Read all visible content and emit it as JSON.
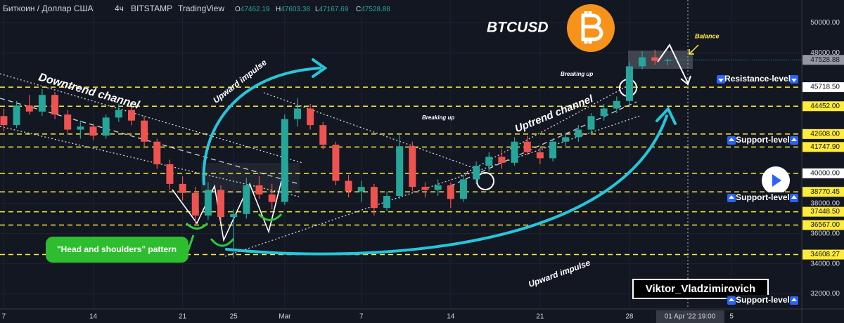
{
  "chart_data": {
    "type": "candlestick",
    "header": {
      "symbol": "Биткоин / Доллар США",
      "timeframe": "4ч",
      "exchange": "BITSTAMP",
      "source": "TradingView",
      "ohlc": [
        {
          "label": "O",
          "value": 47462.19
        },
        {
          "label": "H",
          "value": 47603.38
        },
        {
          "label": "L",
          "value": 47167.69
        },
        {
          "label": "C",
          "value": 47528.88
        }
      ]
    },
    "title": "BTCUSD",
    "x": [
      0,
      1,
      2,
      3,
      4,
      5,
      6,
      7,
      8,
      9,
      10,
      11,
      12,
      13,
      14,
      15,
      16,
      17,
      18,
      19,
      20,
      21,
      22,
      23,
      24,
      25,
      26,
      27,
      28,
      29,
      30,
      31,
      32,
      33,
      34,
      35,
      36,
      37,
      38,
      39,
      40,
      41,
      42,
      43,
      44,
      45,
      46,
      47,
      48,
      49,
      50,
      51,
      52
    ],
    "ohlc": [
      [
        43800,
        44300,
        42800,
        43200
      ],
      [
        43200,
        44800,
        43000,
        44500
      ],
      [
        44500,
        45200,
        43900,
        44100
      ],
      [
        44100,
        45600,
        43800,
        45200
      ],
      [
        45200,
        45400,
        43600,
        43900
      ],
      [
        43900,
        44200,
        42700,
        42900
      ],
      [
        42900,
        43500,
        42300,
        43100
      ],
      [
        43100,
        43300,
        42200,
        42500
      ],
      [
        42500,
        43900,
        42300,
        43700
      ],
      [
        43700,
        44600,
        43400,
        44200
      ],
      [
        44200,
        44500,
        43200,
        43500
      ],
      [
        43500,
        43800,
        41800,
        42100
      ],
      [
        42100,
        42300,
        40300,
        40600
      ],
      [
        40600,
        40900,
        38900,
        39300
      ],
      [
        39300,
        39800,
        38200,
        38700
      ],
      [
        38700,
        39100,
        36600,
        37200
      ],
      [
        37200,
        39400,
        36900,
        38900
      ],
      [
        38900,
        39200,
        36800,
        37100
      ],
      [
        37100,
        37600,
        34400,
        37300
      ],
      [
        37300,
        39700,
        37000,
        39200
      ],
      [
        39200,
        39800,
        38300,
        38600
      ],
      [
        38600,
        39300,
        37600,
        38100
      ],
      [
        38100,
        43900,
        37900,
        43600
      ],
      [
        43600,
        45000,
        43100,
        44300
      ],
      [
        44300,
        44600,
        42900,
        43200
      ],
      [
        43200,
        43400,
        41600,
        41900
      ],
      [
        41900,
        42100,
        39200,
        39500
      ],
      [
        39500,
        39900,
        38400,
        38800
      ],
      [
        38800,
        39500,
        38100,
        39100
      ],
      [
        39100,
        39300,
        37200,
        37700
      ],
      [
        37700,
        38800,
        37500,
        38500
      ],
      [
        38500,
        42600,
        38300,
        41800
      ],
      [
        41800,
        42100,
        38800,
        39100
      ],
      [
        39100,
        39400,
        38400,
        38900
      ],
      [
        38900,
        39600,
        38500,
        39200
      ],
      [
        39200,
        39400,
        37700,
        38300
      ],
      [
        38300,
        39900,
        38100,
        39600
      ],
      [
        39600,
        40800,
        39300,
        40500
      ],
      [
        40500,
        41400,
        40100,
        41100
      ],
      [
        41100,
        41600,
        40300,
        40700
      ],
      [
        40700,
        42400,
        40500,
        42100
      ],
      [
        42100,
        42500,
        41200,
        41400
      ],
      [
        41400,
        41700,
        40600,
        41000
      ],
      [
        41000,
        42300,
        40800,
        42100
      ],
      [
        42100,
        42700,
        41800,
        42400
      ],
      [
        42400,
        43200,
        42100,
        42900
      ],
      [
        42900,
        44000,
        42600,
        43800
      ],
      [
        43800,
        44600,
        43500,
        44300
      ],
      [
        44300,
        45100,
        44000,
        44800
      ],
      [
        44800,
        47400,
        44500,
        47100
      ],
      [
        47100,
        48100,
        46900,
        47700
      ],
      [
        47700,
        48200,
        47200,
        47462.19
      ],
      [
        47462.19,
        47603.38,
        47167.69,
        47528.88
      ]
    ],
    "up_color": "#26a69a",
    "down_color": "#ef5350",
    "xlim": [
      -0.3,
      62.5
    ],
    "xticks": [
      {
        "value": 0,
        "label": "7"
      },
      {
        "value": 7,
        "label": "14"
      },
      {
        "value": 14,
        "label": "21"
      },
      {
        "value": 18,
        "label": "25"
      },
      {
        "value": 22,
        "label": "Mar"
      },
      {
        "value": 28,
        "label": "7"
      },
      {
        "value": 35,
        "label": "14"
      },
      {
        "value": 42,
        "label": "21"
      },
      {
        "value": 49,
        "label": "28"
      },
      {
        "value": 57,
        "label": "5"
      }
    ],
    "ylim": [
      31000,
      51500
    ],
    "yticks": [
      {
        "value": 50000,
        "label": "50000.00"
      },
      {
        "value": 48000,
        "label": "48000.00"
      },
      {
        "value": 38000,
        "label": "38000.00"
      },
      {
        "value": 36000,
        "label": "36000.00"
      },
      {
        "value": 34000,
        "label": "34000.00"
      },
      {
        "value": 32000,
        "label": "32000.00"
      }
    ],
    "grid": true,
    "last_price": 47528.88,
    "levels": [
      {
        "value": 45718.5,
        "label": "45718.50",
        "color": "#ffffff"
      },
      {
        "value": 44452,
        "label": "44452.00",
        "color": "#ffeb3b"
      },
      {
        "value": 42608,
        "label": "42608.00",
        "color": "#ffeb3b"
      },
      {
        "value": 41747.9,
        "label": "41747.90",
        "color": "#ffeb3b"
      },
      {
        "value": 40000,
        "label": "40000.00",
        "color": "#ffffff"
      },
      {
        "value": 38770.45,
        "label": "38770.45",
        "color": "#ffeb3b"
      },
      {
        "value": 37448.5,
        "label": "37448.50",
        "color": "#ffeb3b"
      },
      {
        "value": 36567,
        "label": "36567.00",
        "color": "#ffeb3b"
      },
      {
        "value": 34608.27,
        "label": "34608.27",
        "color": "#ffeb3b"
      }
    ],
    "level_labels": [
      "Resistance-level",
      "Support-level",
      "Support-level",
      "Support-level"
    ],
    "annotations": {
      "downtrend": "Downtrend channel",
      "impulse_1": "Upward impulse",
      "impulse_2": "Upward impulse",
      "uptrend": "Uptrend channel",
      "breaking_1": "Breaking up",
      "breaking_2": "Breaking up",
      "balance": "Balance",
      "pattern": "\"Head and shoulders\" pattern",
      "author": "Viktor_Vladzimirovich"
    },
    "cursor_label": "01 Apr '22  19:00"
  }
}
